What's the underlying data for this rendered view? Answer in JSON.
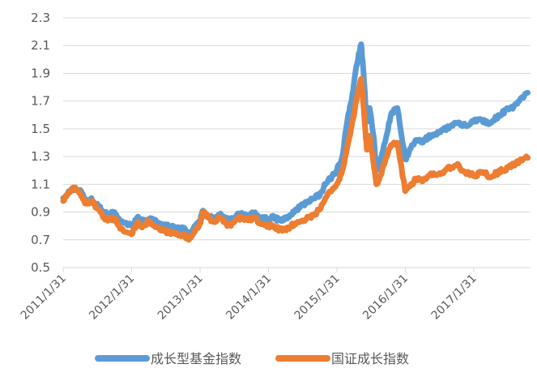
{
  "chart_data": {
    "type": "line",
    "title": "",
    "xlabel": "",
    "ylabel": "",
    "ylim": [
      0.5,
      2.3
    ],
    "yticks": [
      "0.5",
      "0.7",
      "0.9",
      "1.1",
      "1.3",
      "1.5",
      "1.7",
      "1.9",
      "2.1",
      "2.3"
    ],
    "xticks": [
      "2011/1/31",
      "2012/1/31",
      "2013/1/31",
      "2014/1/31",
      "2015/1/31",
      "2016/1/31",
      "2017/1/31"
    ],
    "xlim": [
      "2011/1/31",
      "2017/11/30"
    ],
    "grid": "horizontal",
    "legend": "bottom",
    "series": [
      {
        "name": "成长型基金指数",
        "color": "#5B9BD5",
        "points": [
          [
            "2011/1/31",
            1.0
          ],
          [
            "2011/3/1",
            1.05
          ],
          [
            "2011/4/1",
            1.07
          ],
          [
            "2011/5/1",
            1.06
          ],
          [
            "2011/6/1",
            0.98
          ],
          [
            "2011/7/1",
            1.0
          ],
          [
            "2011/8/1",
            0.96
          ],
          [
            "2011/9/1",
            0.9
          ],
          [
            "2011/10/1",
            0.88
          ],
          [
            "2011/11/1",
            0.9
          ],
          [
            "2011/12/1",
            0.83
          ],
          [
            "2012/1/31",
            0.8
          ],
          [
            "2012/3/1",
            0.86
          ],
          [
            "2012/4/1",
            0.83
          ],
          [
            "2012/5/1",
            0.85
          ],
          [
            "2012/6/1",
            0.84
          ],
          [
            "2012/7/1",
            0.81
          ],
          [
            "2012/8/1",
            0.8
          ],
          [
            "2012/9/1",
            0.79
          ],
          [
            "2012/10/1",
            0.78
          ],
          [
            "2012/11/1",
            0.78
          ],
          [
            "2012/12/1",
            0.74
          ],
          [
            "2013/1/31",
            0.84
          ],
          [
            "2013/2/15",
            0.91
          ],
          [
            "2013/3/15",
            0.87
          ],
          [
            "2013/4/15",
            0.85
          ],
          [
            "2013/5/15",
            0.88
          ],
          [
            "2013/6/15",
            0.85
          ],
          [
            "2013/7/15",
            0.84
          ],
          [
            "2013/8/15",
            0.88
          ],
          [
            "2013/9/15",
            0.89
          ],
          [
            "2013/10/15",
            0.87
          ],
          [
            "2013/11/15",
            0.89
          ],
          [
            "2013/12/15",
            0.86
          ],
          [
            "2014/1/31",
            0.85
          ],
          [
            "2014/3/1",
            0.86
          ],
          [
            "2014/4/1",
            0.84
          ],
          [
            "2014/5/1",
            0.85
          ],
          [
            "2014/6/1",
            0.88
          ],
          [
            "2014/7/1",
            0.92
          ],
          [
            "2014/8/1",
            0.95
          ],
          [
            "2014/9/1",
            0.98
          ],
          [
            "2014/10/1",
            1.0
          ],
          [
            "2014/11/1",
            1.02
          ],
          [
            "2014/12/1",
            1.1
          ],
          [
            "2015/1/31",
            1.2
          ],
          [
            "2015/3/1",
            1.3
          ],
          [
            "2015/4/1",
            1.6
          ],
          [
            "2015/4/20",
            1.7
          ],
          [
            "2015/5/15",
            1.95
          ],
          [
            "2015/6/10",
            2.11
          ],
          [
            "2015/6/25",
            1.85
          ],
          [
            "2015/7/10",
            1.55
          ],
          [
            "2015/7/25",
            1.65
          ],
          [
            "2015/8/15",
            1.45
          ],
          [
            "2015/8/30",
            1.2
          ],
          [
            "2015/9/15",
            1.25
          ],
          [
            "2015/10/15",
            1.4
          ],
          [
            "2015/11/15",
            1.6
          ],
          [
            "2015/12/20",
            1.65
          ],
          [
            "2016/1/31",
            1.28
          ],
          [
            "2016/3/1",
            1.36
          ],
          [
            "2016/4/1",
            1.42
          ],
          [
            "2016/5/1",
            1.4
          ],
          [
            "2016/6/1",
            1.44
          ],
          [
            "2016/7/1",
            1.46
          ],
          [
            "2016/8/1",
            1.48
          ],
          [
            "2016/9/1",
            1.5
          ],
          [
            "2016/10/1",
            1.52
          ],
          [
            "2016/11/1",
            1.54
          ],
          [
            "2016/12/1",
            1.52
          ],
          [
            "2017/1/31",
            1.55
          ],
          [
            "2017/3/1",
            1.57
          ],
          [
            "2017/4/1",
            1.55
          ],
          [
            "2017/5/1",
            1.54
          ],
          [
            "2017/6/1",
            1.58
          ],
          [
            "2017/7/1",
            1.61
          ],
          [
            "2017/8/1",
            1.64
          ],
          [
            "2017/9/1",
            1.66
          ],
          [
            "2017/10/1",
            1.7
          ],
          [
            "2017/11/15",
            1.76
          ]
        ]
      },
      {
        "name": "国证成长指数",
        "color": "#ED7D31",
        "points": [
          [
            "2011/1/31",
            0.98
          ],
          [
            "2011/3/1",
            1.04
          ],
          [
            "2011/4/1",
            1.07
          ],
          [
            "2011/5/1",
            1.04
          ],
          [
            "2011/6/1",
            0.96
          ],
          [
            "2011/7/1",
            0.98
          ],
          [
            "2011/8/1",
            0.93
          ],
          [
            "2011/9/1",
            0.86
          ],
          [
            "2011/10/1",
            0.84
          ],
          [
            "2011/11/1",
            0.86
          ],
          [
            "2011/12/1",
            0.78
          ],
          [
            "2012/1/31",
            0.74
          ],
          [
            "2012/3/1",
            0.82
          ],
          [
            "2012/4/1",
            0.8
          ],
          [
            "2012/5/1",
            0.83
          ],
          [
            "2012/6/1",
            0.8
          ],
          [
            "2012/7/1",
            0.77
          ],
          [
            "2012/8/1",
            0.76
          ],
          [
            "2012/9/1",
            0.75
          ],
          [
            "2012/10/1",
            0.74
          ],
          [
            "2012/11/1",
            0.74
          ],
          [
            "2012/12/1",
            0.7
          ],
          [
            "2013/1/31",
            0.82
          ],
          [
            "2013/2/15",
            0.9
          ],
          [
            "2013/3/15",
            0.86
          ],
          [
            "2013/4/15",
            0.83
          ],
          [
            "2013/5/15",
            0.86
          ],
          [
            "2013/6/15",
            0.82
          ],
          [
            "2013/7/15",
            0.8
          ],
          [
            "2013/8/15",
            0.85
          ],
          [
            "2013/9/15",
            0.86
          ],
          [
            "2013/10/15",
            0.84
          ],
          [
            "2013/11/15",
            0.86
          ],
          [
            "2013/12/15",
            0.82
          ],
          [
            "2014/1/31",
            0.8
          ],
          [
            "2014/3/1",
            0.8
          ],
          [
            "2014/4/1",
            0.77
          ],
          [
            "2014/5/1",
            0.78
          ],
          [
            "2014/6/1",
            0.8
          ],
          [
            "2014/7/1",
            0.82
          ],
          [
            "2014/8/1",
            0.84
          ],
          [
            "2014/9/1",
            0.86
          ],
          [
            "2014/10/1",
            0.88
          ],
          [
            "2014/11/1",
            0.92
          ],
          [
            "2014/12/1",
            1.0
          ],
          [
            "2015/1/31",
            1.1
          ],
          [
            "2015/3/1",
            1.2
          ],
          [
            "2015/4/1",
            1.4
          ],
          [
            "2015/4/20",
            1.52
          ],
          [
            "2015/5/15",
            1.7
          ],
          [
            "2015/6/10",
            1.86
          ],
          [
            "2015/6/25",
            1.62
          ],
          [
            "2015/7/10",
            1.35
          ],
          [
            "2015/7/25",
            1.45
          ],
          [
            "2015/8/15",
            1.25
          ],
          [
            "2015/8/30",
            1.1
          ],
          [
            "2015/9/15",
            1.14
          ],
          [
            "2015/10/15",
            1.26
          ],
          [
            "2015/11/15",
            1.38
          ],
          [
            "2015/12/20",
            1.4
          ],
          [
            "2016/1/31",
            1.05
          ],
          [
            "2016/3/1",
            1.1
          ],
          [
            "2016/4/1",
            1.14
          ],
          [
            "2016/5/1",
            1.12
          ],
          [
            "2016/6/1",
            1.16
          ],
          [
            "2016/7/1",
            1.18
          ],
          [
            "2016/8/1",
            1.18
          ],
          [
            "2016/9/1",
            1.2
          ],
          [
            "2016/10/1",
            1.22
          ],
          [
            "2016/11/1",
            1.24
          ],
          [
            "2016/12/1",
            1.2
          ],
          [
            "2017/1/31",
            1.16
          ],
          [
            "2017/3/1",
            1.18
          ],
          [
            "2017/4/1",
            1.18
          ],
          [
            "2017/5/1",
            1.15
          ],
          [
            "2017/6/1",
            1.18
          ],
          [
            "2017/7/1",
            1.2
          ],
          [
            "2017/8/1",
            1.22
          ],
          [
            "2017/9/1",
            1.24
          ],
          [
            "2017/10/1",
            1.27
          ],
          [
            "2017/11/15",
            1.29
          ]
        ]
      }
    ]
  }
}
